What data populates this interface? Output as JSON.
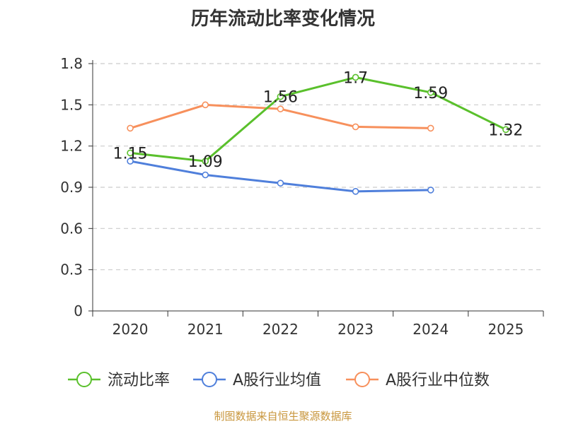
{
  "chart_data": {
    "type": "line",
    "title": "历年流动比率变化情况",
    "categories": [
      "2020",
      "2021",
      "2022",
      "2023",
      "2024",
      "2025"
    ],
    "ylim": [
      0,
      1.8
    ],
    "yticks": [
      "0",
      "0.3",
      "0.6",
      "0.9",
      "1.2",
      "1.5",
      "1.8"
    ],
    "grid": true,
    "legend_position": "bottom",
    "series": [
      {
        "name": "流动比率",
        "color": "#5ac02c",
        "values": [
          1.15,
          1.09,
          1.56,
          1.7,
          1.59,
          1.32
        ],
        "labels": [
          "1.15",
          "1.09",
          "1.56",
          "1.7",
          "1.59",
          "1.32"
        ]
      },
      {
        "name": "A股行业均值",
        "color": "#4f7fdb",
        "values": [
          1.09,
          0.99,
          0.93,
          0.87,
          0.88,
          null
        ]
      },
      {
        "name": "A股行业中位数",
        "color": "#f7905c",
        "values": [
          1.33,
          1.5,
          1.47,
          1.34,
          1.33,
          null
        ]
      }
    ]
  },
  "footer": "制图数据来自恒生聚源数据库"
}
